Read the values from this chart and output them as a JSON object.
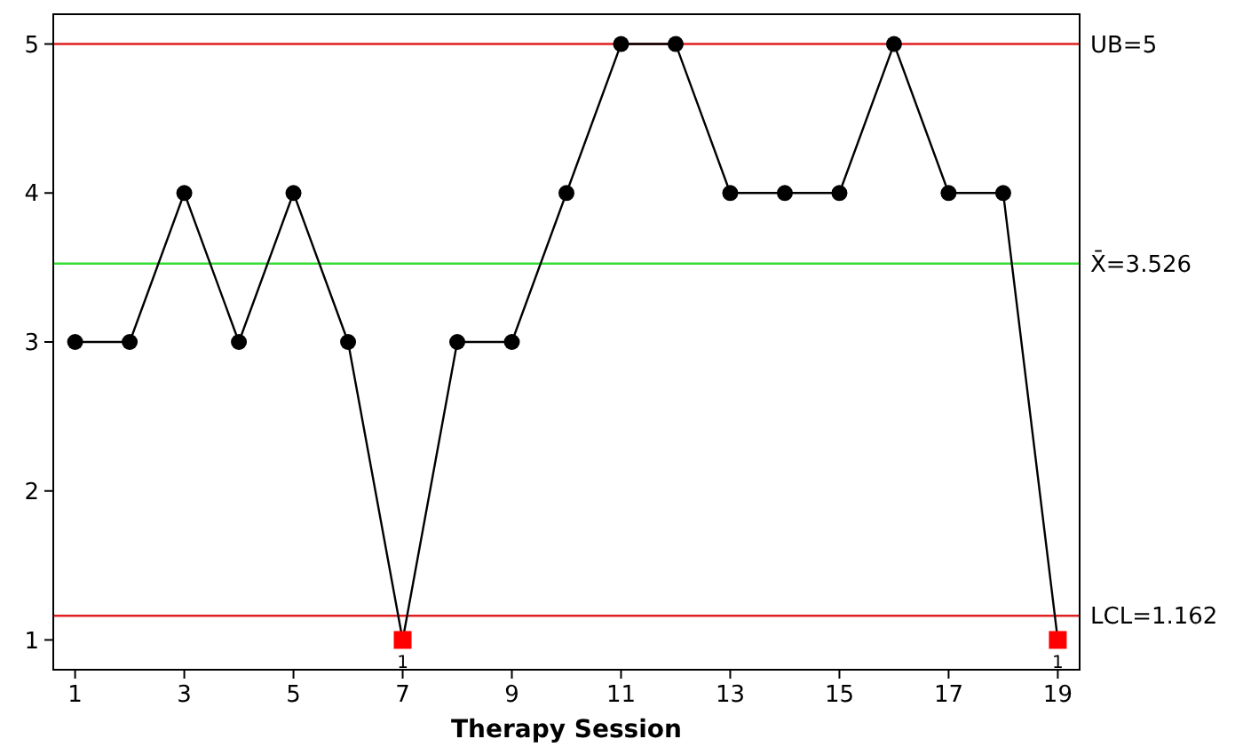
{
  "chart_data": {
    "type": "line",
    "xlabel": "Therapy Session",
    "x": [
      1,
      2,
      3,
      4,
      5,
      6,
      7,
      8,
      9,
      10,
      11,
      12,
      13,
      14,
      15,
      16,
      17,
      18,
      19
    ],
    "series": [
      {
        "color": "#000000",
        "values": [
          3,
          3,
          4,
          3,
          4,
          3,
          1,
          3,
          3,
          4,
          5,
          5,
          4,
          4,
          4,
          5,
          4,
          4,
          1
        ]
      },
      {
        "type": "scatter",
        "color": "#ff0000",
        "marker": "square",
        "values": [
          null,
          null,
          null,
          null,
          null,
          null,
          1,
          null,
          null,
          null,
          null,
          null,
          null,
          null,
          null,
          null,
          null,
          null,
          1
        ]
      }
    ],
    "xlim": [
      0.6,
      19.4
    ],
    "xticks": [
      1,
      3,
      5,
      7,
      9,
      11,
      13,
      15,
      17,
      19
    ],
    "ylim": [
      0.8,
      5.2
    ],
    "yticks": [
      1,
      2,
      3,
      4,
      5
    ],
    "ref_lines": [
      {
        "axis": "y",
        "value": 5,
        "label": "UB=5",
        "color": "#e02020"
      },
      {
        "axis": "y",
        "value": 3.526,
        "label": "X̄=3.526",
        "color": "#33dd33"
      },
      {
        "axis": "y",
        "value": 1.162,
        "label": "LCL=1.162",
        "color": "#e02020"
      }
    ],
    "annotations": [
      {
        "text": "1",
        "x": 7,
        "y": 1
      },
      {
        "text": "1",
        "x": 19,
        "y": 1
      }
    ],
    "marker": "circle"
  }
}
